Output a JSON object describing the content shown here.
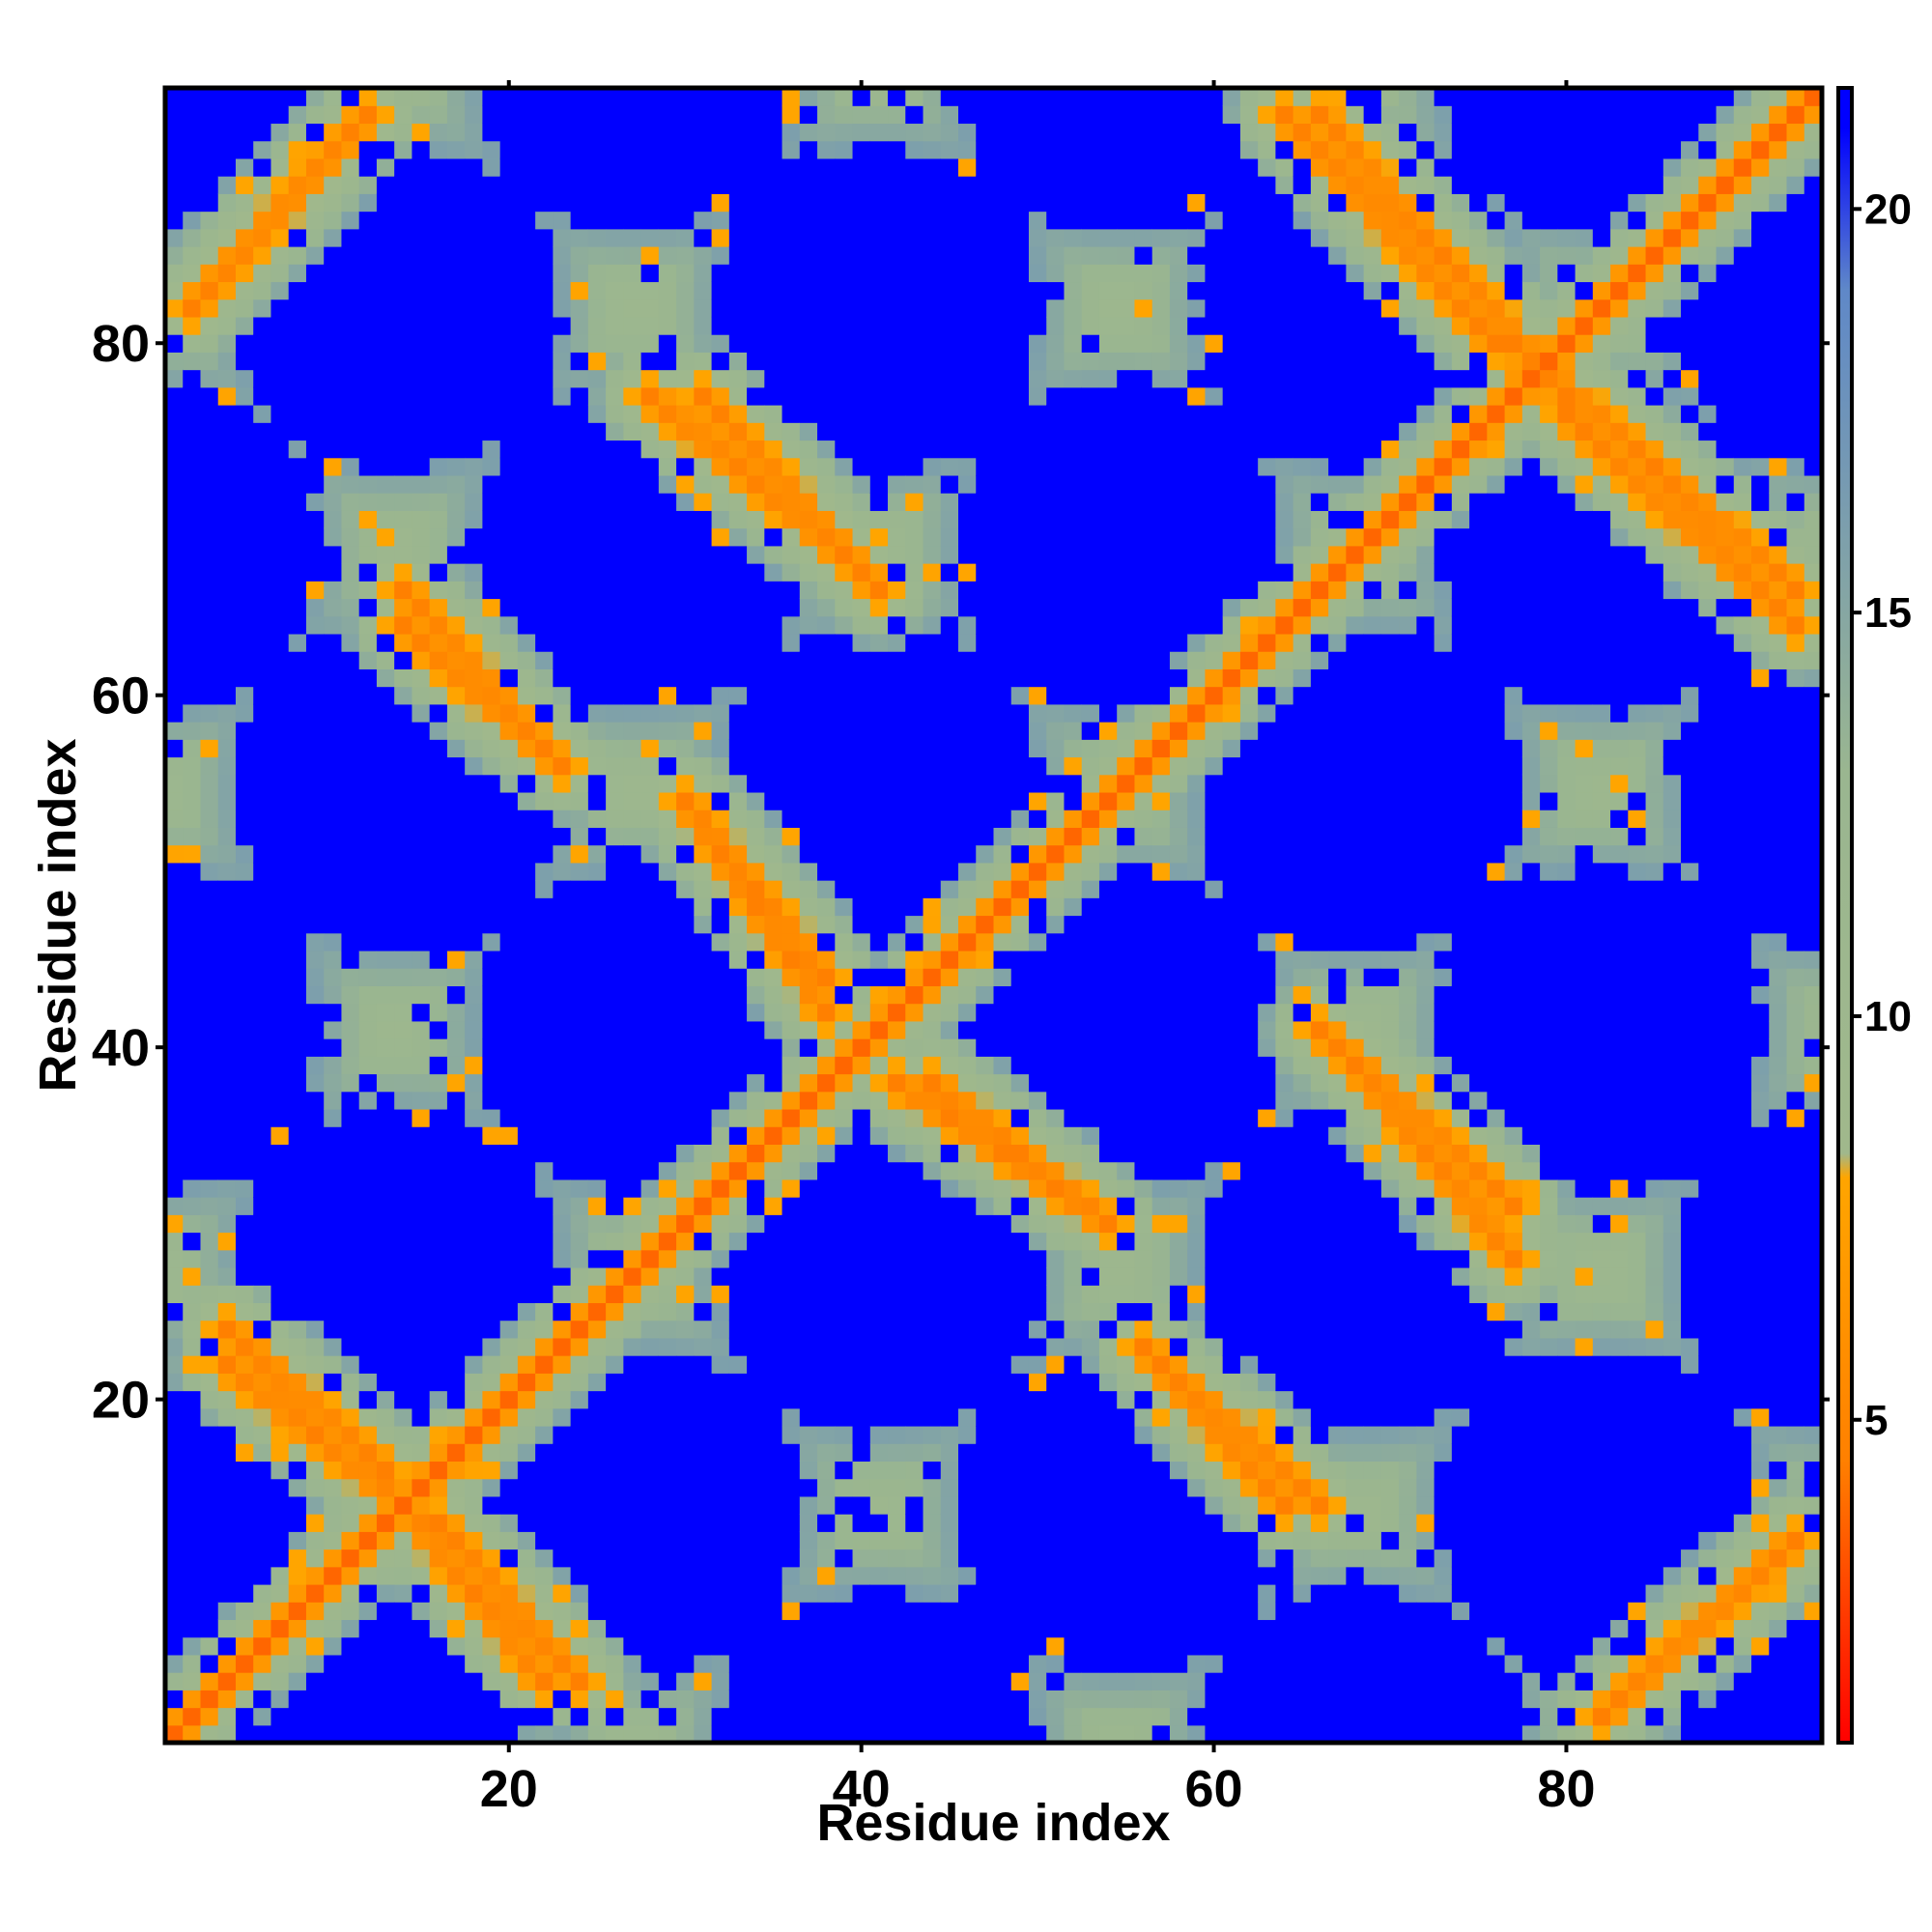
{
  "chart_data": {
    "type": "heatmap",
    "title": "",
    "xlabel": "Residue index",
    "ylabel": "Residue index",
    "x_range": [
      1,
      94
    ],
    "y_range": [
      1,
      94
    ],
    "x_ticks": [
      20,
      40,
      60,
      80
    ],
    "y_ticks": [
      20,
      40,
      60,
      80
    ],
    "x_tick_labels": [
      "20",
      "40",
      "60",
      "80"
    ],
    "y_tick_labels": [
      "20",
      "40",
      "60",
      "80"
    ],
    "n_residues": 94,
    "value_cap": 21,
    "grid": false,
    "colorbar": {
      "position": "right",
      "range": [
        1,
        21.5
      ],
      "ticks": [
        5,
        10,
        15,
        20
      ],
      "tick_labels": [
        "5",
        "10",
        "15",
        "20"
      ],
      "stops": [
        {
          "value": 1,
          "color": "#ff0000"
        },
        {
          "value": 4.5,
          "color": "#ff8000"
        },
        {
          "value": 8,
          "color": "#ffa500"
        },
        {
          "value": 8.3,
          "color": "#a0b88c"
        },
        {
          "value": 13,
          "color": "#9ab690"
        },
        {
          "value": 19,
          "color": "#5f88c8"
        },
        {
          "value": 21,
          "color": "#0000ff"
        }
      ]
    },
    "description_values": {
      "diagonal_distance": 3.8,
      "beta_sheet_stripes": [
        {
          "from": [
            4,
            22
          ],
          "to": [
            14,
            14
          ]
        },
        {
          "from": [
            16,
            13
          ],
          "to": [
            24,
            4
          ]
        },
        {
          "from": [
            14,
            64
          ],
          "to": [
            23,
            56
          ]
        },
        {
          "from": [
            30,
            54
          ],
          "to": [
            38,
            44
          ]
        },
        {
          "from": [
            28,
            77
          ],
          "to": [
            39,
            68
          ]
        },
        {
          "from": [
            42,
            38
          ],
          "to": [
            54,
            30
          ]
        },
        {
          "from": [
            57,
            22
          ],
          "to": [
            66,
            14
          ]
        },
        {
          "from": [
            66,
            41
          ],
          "to": [
            77,
            31
          ]
        },
        {
          "from": [
            64,
            93
          ],
          "to": [
            76,
            80
          ]
        },
        {
          "from": [
            77,
            80
          ],
          "to": [
            93,
            66
          ]
        },
        {
          "from": [
            82,
            2
          ],
          "to": [
            93,
            12
          ]
        }
      ]
    }
  }
}
